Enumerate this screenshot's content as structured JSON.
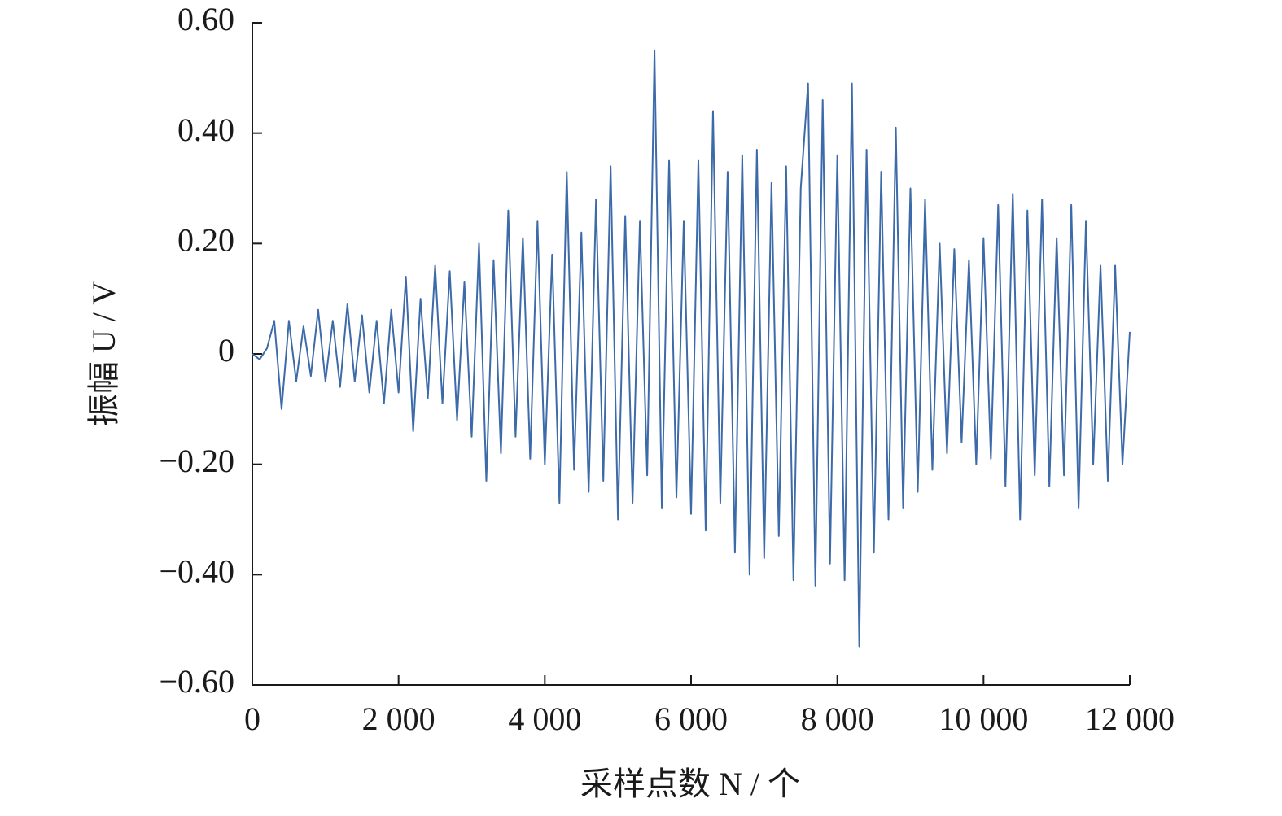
{
  "chart_data": {
    "type": "line",
    "xlabel": "采样点数 N / 个",
    "ylabel": "振幅 U / V",
    "xlim": [
      0,
      12000
    ],
    "ylim": [
      -0.6,
      0.6
    ],
    "xticks": [
      0,
      {
        "value": 2000,
        "label": "2 000"
      },
      {
        "value": 4000,
        "label": "4 000"
      },
      {
        "value": 6000,
        "label": "6 000"
      },
      {
        "value": 8000,
        "label": "8 000"
      },
      {
        "value": 10000,
        "label": "10 000"
      },
      {
        "value": 12000,
        "label": "12 000"
      }
    ],
    "yticks": [
      {
        "value": -0.6,
        "label": "−0.60"
      },
      {
        "value": -0.4,
        "label": "−0.40"
      },
      {
        "value": -0.2,
        "label": "−0.20"
      },
      0,
      {
        "value": 0.2,
        "label": "0.20"
      },
      {
        "value": 0.4,
        "label": "0.40"
      },
      {
        "value": 0.6,
        "label": "0.60"
      }
    ],
    "grid": false,
    "x": [
      0,
      100,
      200,
      300,
      400,
      500,
      600,
      700,
      800,
      900,
      1000,
      1100,
      1200,
      1300,
      1400,
      1500,
      1600,
      1700,
      1800,
      1900,
      2000,
      2100,
      2200,
      2300,
      2400,
      2500,
      2600,
      2700,
      2800,
      2900,
      3000,
      3100,
      3200,
      3300,
      3400,
      3500,
      3600,
      3700,
      3800,
      3900,
      4000,
      4100,
      4200,
      4300,
      4400,
      4500,
      4600,
      4700,
      4800,
      4900,
      5000,
      5100,
      5200,
      5300,
      5400,
      5500,
      5600,
      5700,
      5800,
      5900,
      6000,
      6100,
      6200,
      6300,
      6400,
      6500,
      6600,
      6700,
      6800,
      6900,
      7000,
      7100,
      7200,
      7300,
      7400,
      7500,
      7600,
      7700,
      7800,
      7900,
      8000,
      8100,
      8200,
      8300,
      8400,
      8500,
      8600,
      8700,
      8800,
      8900,
      9000,
      9100,
      9200,
      9300,
      9400,
      9500,
      9600,
      9700,
      9800,
      9900,
      10000,
      10100,
      10200,
      10300,
      10400,
      10500,
      10600,
      10700,
      10800,
      10900,
      11000,
      11100,
      11200,
      11300,
      11400,
      11500,
      11600,
      11700,
      11800,
      11900,
      12000
    ],
    "series": [
      {
        "name": "振幅",
        "color": "#3d6aa9",
        "values": [
          0,
          -0.01,
          0.01,
          0.06,
          -0.1,
          0.06,
          -0.05,
          0.05,
          -0.04,
          0.08,
          -0.05,
          0.06,
          -0.06,
          0.09,
          -0.05,
          0.07,
          -0.07,
          0.06,
          -0.09,
          0.08,
          -0.07,
          0.14,
          -0.14,
          0.1,
          -0.08,
          0.16,
          -0.09,
          0.15,
          -0.12,
          0.13,
          -0.15,
          0.2,
          -0.23,
          0.17,
          -0.18,
          0.26,
          -0.15,
          0.21,
          -0.19,
          0.24,
          -0.2,
          0.18,
          -0.27,
          0.33,
          -0.21,
          0.22,
          -0.25,
          0.28,
          -0.23,
          0.34,
          -0.3,
          0.25,
          -0.27,
          0.24,
          -0.22,
          0.55,
          -0.28,
          0.35,
          -0.26,
          0.24,
          -0.29,
          0.35,
          -0.32,
          0.44,
          -0.27,
          0.33,
          -0.36,
          0.36,
          -0.4,
          0.37,
          -0.37,
          0.31,
          -0.33,
          0.34,
          -0.41,
          0.3,
          0.49,
          -0.42,
          0.46,
          -0.38,
          0.36,
          -0.41,
          0.49,
          -0.53,
          0.37,
          -0.36,
          0.33,
          -0.3,
          0.41,
          -0.28,
          0.3,
          -0.25,
          0.28,
          -0.21,
          0.2,
          -0.18,
          0.19,
          -0.16,
          0.17,
          -0.2,
          0.21,
          -0.19,
          0.27,
          -0.24,
          0.29,
          -0.3,
          0.26,
          -0.22,
          0.28,
          -0.24,
          0.21,
          -0.22,
          0.27,
          -0.28,
          0.24,
          -0.2,
          0.16,
          -0.23,
          0.16,
          -0.2,
          0.04
        ]
      }
    ]
  }
}
